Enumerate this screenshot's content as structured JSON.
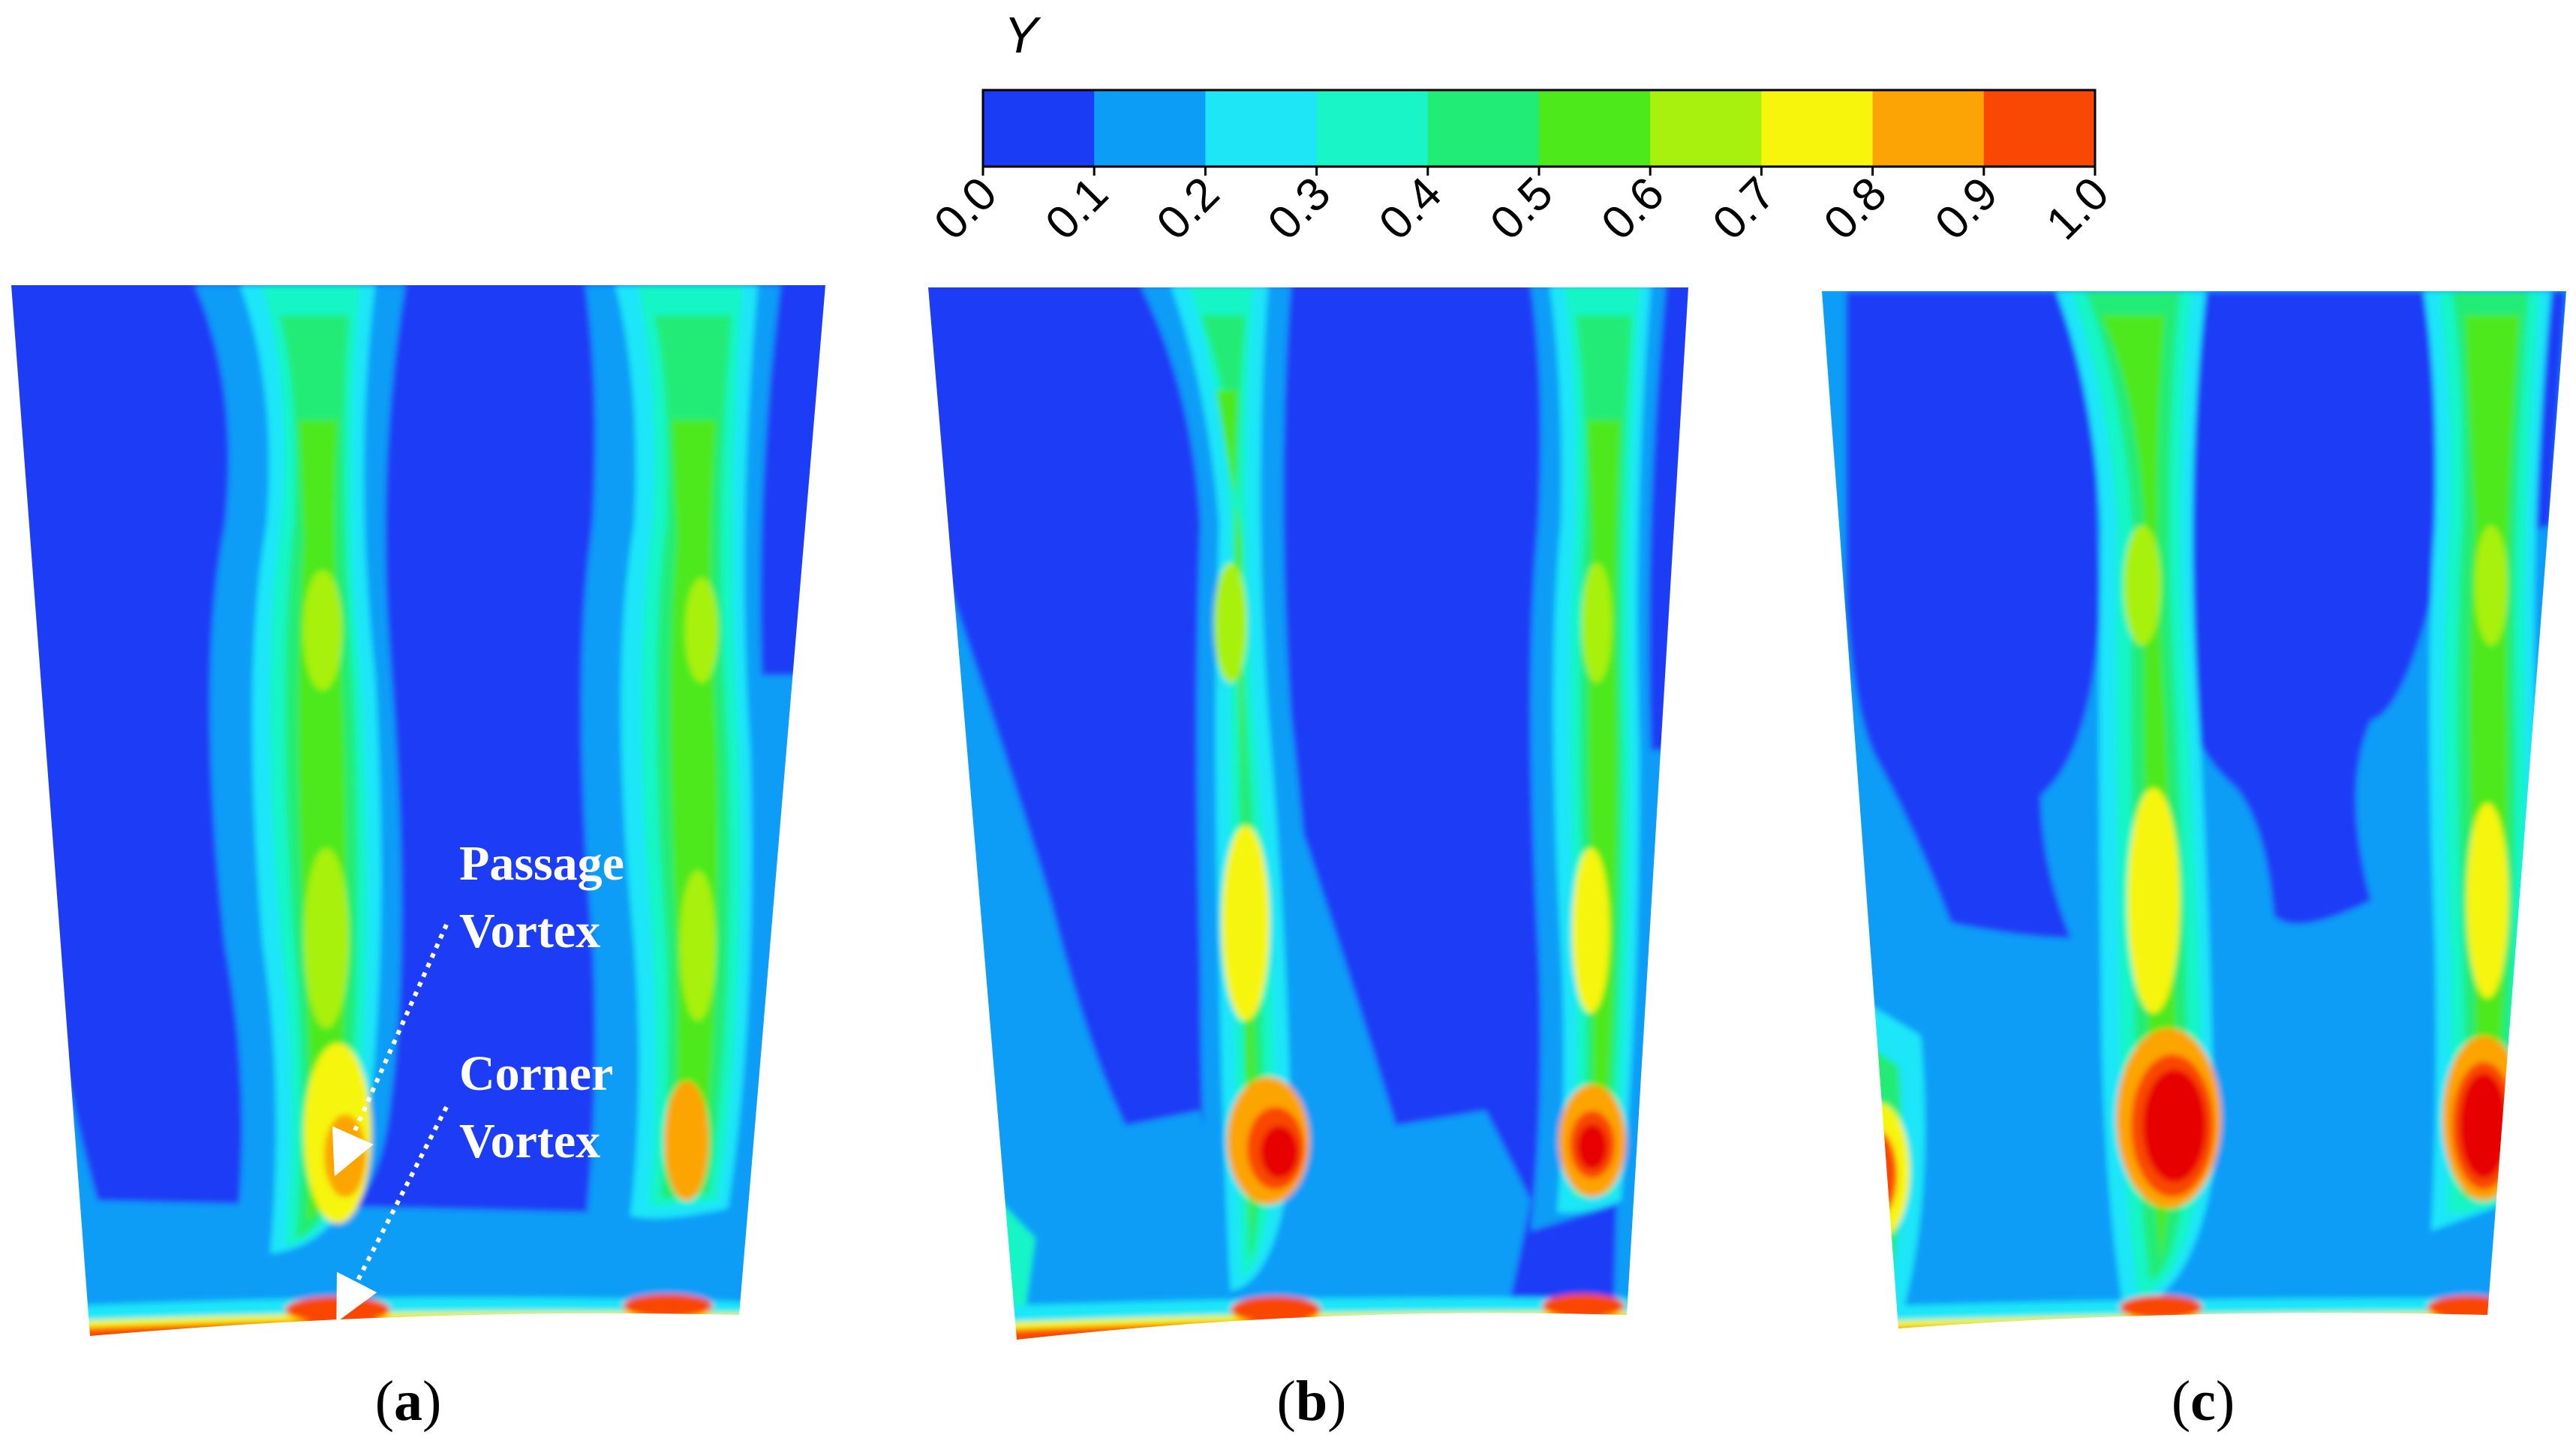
{
  "colorbar": {
    "title": "Y",
    "ticks": [
      "0.0",
      "0.1",
      "0.2",
      "0.3",
      "0.4",
      "0.5",
      "0.6",
      "0.7",
      "0.8",
      "0.9",
      "1.0"
    ],
    "colors": [
      "#1a3cf5",
      "#0c9df7",
      "#1ee6f7",
      "#19f5c6",
      "#20ec76",
      "#4ee91a",
      "#a8f10f",
      "#f6f50b",
      "#fca405",
      "#f94704"
    ]
  },
  "panels": [
    {
      "label_open": "(",
      "label_letter": "a",
      "label_close": ")"
    },
    {
      "label_open": "(",
      "label_letter": "b",
      "label_close": ")"
    },
    {
      "label_open": "(",
      "label_letter": "c",
      "label_close": ")"
    }
  ],
  "annotations": {
    "passage_line1": "Passage",
    "passage_line2": "Vortex",
    "corner_line1": "Corner",
    "corner_line2": "Vortex"
  }
}
